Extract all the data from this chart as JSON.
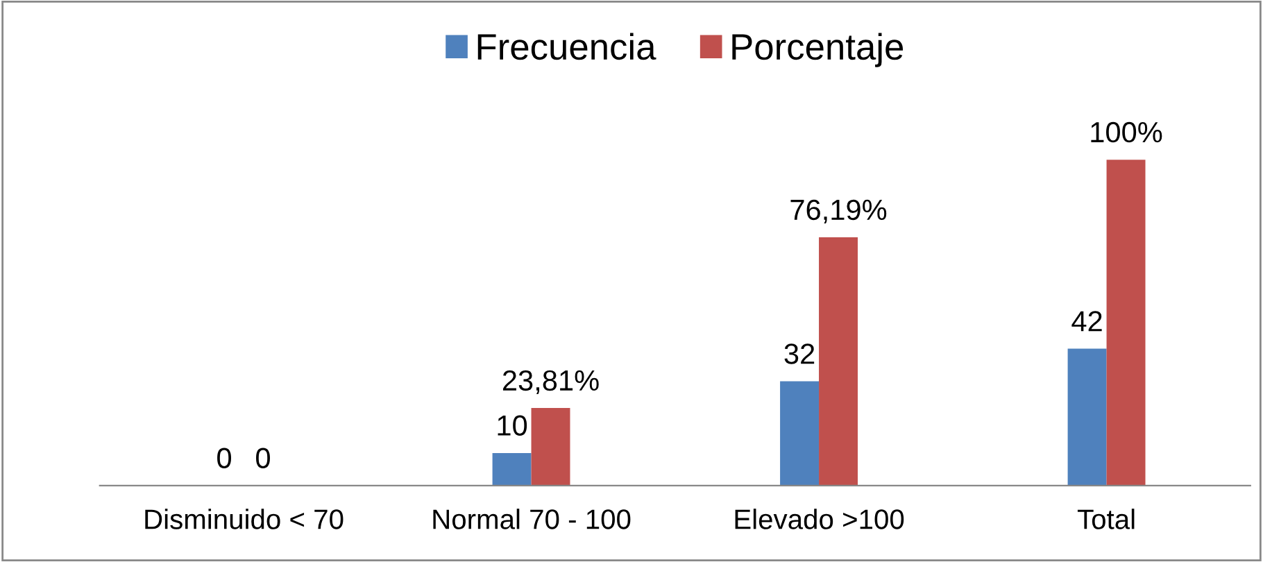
{
  "chart_data": {
    "type": "bar",
    "categories": [
      "Disminuido < 70",
      "Normal 70 - 100",
      "Elevado >100",
      "Total"
    ],
    "series": [
      {
        "name": "Frecuencia",
        "color": "#4f81bd",
        "values": [
          0,
          10,
          32,
          42
        ],
        "value_labels": [
          "0",
          "10",
          "32",
          "42"
        ]
      },
      {
        "name": "Porcentaje",
        "color": "#c0504d",
        "values": [
          0,
          23.81,
          76.19,
          100
        ],
        "value_labels": [
          "0",
          "23,81%",
          "76,19%",
          "100%"
        ]
      }
    ],
    "legend": "top",
    "grid": false,
    "tick_labels": "x"
  }
}
